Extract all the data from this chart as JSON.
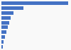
{
  "values": [
    4.2,
    1.4,
    0.75,
    0.58,
    0.48,
    0.38,
    0.3,
    0.22,
    0.14,
    0.07
  ],
  "bar_color": "#4472c4",
  "background_color": "#f9f9f9",
  "grid_color": "#dddddd",
  "figsize": [
    1.0,
    0.71
  ],
  "dpi": 100
}
